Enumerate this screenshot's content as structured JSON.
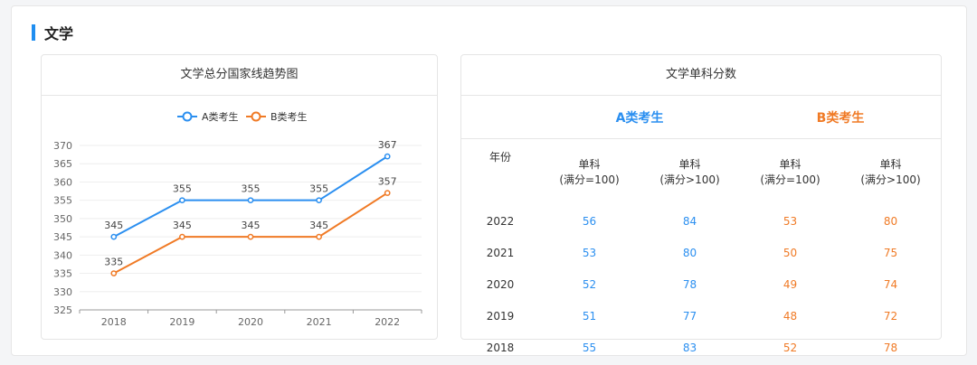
{
  "colors": {
    "accent": "#1f8ef0",
    "series_a": "#2b8ff0",
    "series_b": "#f07a25",
    "grid": "#eeeeee",
    "axis": "#999999"
  },
  "section": {
    "title": "文学"
  },
  "chart_panel": {
    "title": "文学总分国家线趋势图"
  },
  "chart_data": {
    "type": "line",
    "title": "文学总分国家线趋势图",
    "x": [
      "2018",
      "2019",
      "2020",
      "2021",
      "2022"
    ],
    "ylim": [
      325,
      370
    ],
    "yticks": [
      325,
      330,
      335,
      340,
      345,
      350,
      355,
      360,
      365,
      370
    ],
    "grid": true,
    "legend": "top-center",
    "series": [
      {
        "name": "A类考生",
        "values": [
          345,
          355,
          355,
          355,
          367
        ],
        "color": "#2b8ff0"
      },
      {
        "name": "B类考生",
        "values": [
          335,
          345,
          345,
          345,
          357
        ],
        "color": "#f07a25"
      }
    ]
  },
  "table_panel": {
    "title": "文学单科分数",
    "group_a": "A类考生",
    "group_b": "B类考生",
    "year_header": "年份",
    "sub_headers": [
      {
        "line1": "单科",
        "line2": "(满分=100)"
      },
      {
        "line1": "单科",
        "line2": "(满分>100)"
      },
      {
        "line1": "单科",
        "line2": "(满分=100)"
      },
      {
        "line1": "单科",
        "line2": "(满分>100)"
      }
    ],
    "rows": [
      {
        "year": "2022",
        "a1": "56",
        "a2": "84",
        "b1": "53",
        "b2": "80"
      },
      {
        "year": "2021",
        "a1": "53",
        "a2": "80",
        "b1": "50",
        "b2": "75"
      },
      {
        "year": "2020",
        "a1": "52",
        "a2": "78",
        "b1": "49",
        "b2": "74"
      },
      {
        "year": "2019",
        "a1": "51",
        "a2": "77",
        "b1": "48",
        "b2": "72"
      },
      {
        "year": "2018",
        "a1": "55",
        "a2": "83",
        "b1": "52",
        "b2": "78"
      }
    ]
  }
}
